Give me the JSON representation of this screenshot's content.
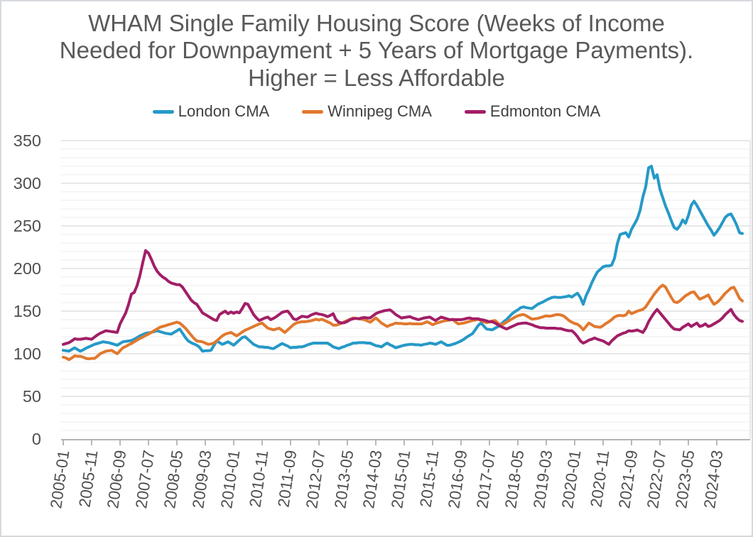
{
  "chart_data": {
    "type": "line",
    "title": "WHAM Single Family Housing Score (Weeks of Income Needed for Downpayment + 5 Years of Mortgage Payments). Higher = Less Affordable",
    "x_unit": "month",
    "x_start": "2005-01",
    "x_end": "2024-12",
    "x_tick_labels": [
      "2005-01",
      "2005-11",
      "2006-09",
      "2007-07",
      "2008-05",
      "2009-03",
      "2010-01",
      "2010-11",
      "2011-09",
      "2012-07",
      "2013-05",
      "2014-03",
      "2015-01",
      "2015-11",
      "2016-09",
      "2017-07",
      "2018-05",
      "2019-03",
      "2020-01",
      "2020-11",
      "2021-09",
      "2022-07",
      "2023-05",
      "2024-03"
    ],
    "x_tick_step_months": 10,
    "y_ticks": [
      0,
      50,
      100,
      150,
      200,
      250,
      300,
      350
    ],
    "ylim": [
      0,
      350
    ],
    "grid": {
      "horizontal_only": true,
      "minor_step": 10,
      "major_step": 50
    },
    "legend_position": "top-center",
    "colors": {
      "title_text": "#58595b",
      "axis_text": "#4f4f4f",
      "legend_text": "#414141",
      "grid_minor": "#ededed",
      "grid_major": "#d9d9d9",
      "axis_line": "#9b9b9b"
    },
    "series": [
      {
        "name": "London CMA",
        "color": "#2699c8",
        "values": [
          104,
          103.5,
          103,
          105,
          107,
          105,
          103,
          104.5,
          106.5,
          108,
          109.5,
          111,
          112,
          113,
          114,
          113.5,
          113,
          112,
          111,
          110,
          112,
          114,
          114.5,
          115,
          115.5,
          117,
          119,
          121,
          122.5,
          124,
          124.5,
          125,
          126,
          127,
          126,
          125,
          124,
          123.5,
          123,
          125,
          127,
          129,
          124,
          119,
          115,
          113,
          111.5,
          110,
          107.5,
          103,
          103.5,
          103.5,
          104,
          109.5,
          115,
          113,
          111,
          112.5,
          114,
          112,
          110,
          113,
          116,
          119,
          120,
          117,
          114,
          111,
          109.5,
          108,
          108,
          107.5,
          107.5,
          106.5,
          106,
          108,
          110,
          112,
          110.5,
          109,
          107,
          107.5,
          107.5,
          108,
          108,
          109,
          110.5,
          111.5,
          112.5,
          112.5,
          112.5,
          112.5,
          112.5,
          112.5,
          110.5,
          108,
          107,
          106,
          107.5,
          108.5,
          110,
          111,
          112.5,
          112.5,
          113,
          113,
          113,
          112.5,
          112.5,
          111,
          109.5,
          109,
          108,
          110.5,
          112.5,
          110.5,
          109,
          107,
          108,
          109,
          110,
          110.5,
          111,
          111,
          110.5,
          110.5,
          110,
          111,
          111.5,
          112.5,
          112,
          111,
          112.5,
          114,
          112,
          110,
          110,
          111,
          112,
          113.5,
          115,
          117,
          119.5,
          121.5,
          123.5,
          128,
          133,
          136,
          132.5,
          129,
          128.5,
          128,
          130,
          132,
          134.5,
          137.5,
          140,
          143.5,
          147,
          149.5,
          151.5,
          154,
          155,
          154,
          153.5,
          153,
          155.5,
          158,
          159.5,
          161,
          163,
          164.5,
          166,
          166.5,
          166,
          166,
          166.5,
          167,
          168,
          166.5,
          169,
          171,
          166,
          158,
          168,
          175,
          183,
          190,
          196,
          199,
          202,
          203,
          203,
          204,
          212,
          229,
          240,
          241,
          242,
          237,
          246,
          252,
          258,
          268,
          284,
          296,
          318,
          320,
          306,
          310,
          293,
          283,
          273,
          265,
          256,
          248,
          246,
          250,
          257,
          253,
          262,
          274,
          279,
          274,
          268,
          262,
          256,
          250,
          245,
          239,
          243,
          248,
          254,
          260,
          263,
          264,
          258,
          251,
          242,
          241
        ]
      },
      {
        "name": "Winnipeg CMA",
        "color": "#e1792e",
        "values": [
          96,
          95,
          93,
          95,
          97.5,
          97,
          97,
          96,
          94.5,
          94,
          94.5,
          94.5,
          97,
          100,
          101.5,
          103,
          103.5,
          104,
          102,
          100,
          103.5,
          107,
          108.5,
          110.5,
          112,
          114,
          116,
          118,
          119.5,
          121.5,
          123,
          125,
          127,
          129,
          131,
          132,
          133,
          134,
          135,
          136,
          137,
          136,
          133,
          130,
          126,
          122,
          118,
          115,
          114.5,
          114,
          112.5,
          111,
          111.5,
          112.5,
          115,
          118,
          121,
          123,
          124,
          125,
          123,
          121,
          123,
          125.5,
          127.5,
          129,
          130.5,
          132,
          133.5,
          135,
          136,
          133,
          130,
          129,
          128,
          129,
          130,
          127.5,
          125,
          128,
          131,
          134,
          136,
          137,
          137.5,
          137.5,
          138,
          138.5,
          139.5,
          140.5,
          139.5,
          140.5,
          139,
          137.5,
          136,
          133.5,
          133.5,
          134.5,
          136,
          137.5,
          139,
          140.5,
          142,
          141.5,
          141,
          140.5,
          140,
          138.5,
          137,
          139.5,
          142,
          139,
          136,
          134,
          132,
          133.5,
          134.5,
          136,
          135.5,
          135.5,
          135,
          135,
          135.5,
          135,
          135,
          135,
          135,
          136,
          137.5,
          136,
          134,
          135.5,
          136.5,
          137.5,
          138.5,
          139,
          139.5,
          140.5,
          137.5,
          135,
          135.5,
          136,
          137,
          138,
          139,
          139.5,
          140.5,
          139,
          137.5,
          136.5,
          137.5,
          138.5,
          139,
          136,
          133.5,
          135,
          137,
          139,
          141,
          143,
          144.5,
          145.5,
          146,
          144.5,
          142.5,
          140.5,
          141,
          141.5,
          142.5,
          143.5,
          144.5,
          144,
          144.5,
          145.5,
          146,
          145.5,
          144.5,
          142,
          139,
          137,
          135.5,
          134.5,
          132,
          128,
          132,
          136,
          134,
          132,
          131.5,
          131,
          133,
          135.5,
          137.5,
          140,
          143,
          144.5,
          145,
          144.5,
          145.5,
          150,
          147,
          148.5,
          150,
          151,
          152,
          155,
          160,
          165,
          170,
          174,
          178,
          180.5,
          178,
          172,
          166,
          161,
          160,
          162,
          165,
          168,
          170,
          172,
          172.5,
          168,
          164,
          165.5,
          167,
          169,
          163,
          158,
          160,
          163,
          167,
          171,
          174,
          177,
          178,
          172,
          165,
          162
        ]
      },
      {
        "name": "Edmonton CMA",
        "color": "#a21e67",
        "values": [
          111,
          112,
          113,
          115,
          117.5,
          117,
          117,
          117.5,
          118,
          117.5,
          117,
          119.5,
          122,
          124,
          125.5,
          127,
          126.5,
          126,
          125.5,
          125,
          135,
          141.5,
          148,
          158,
          170,
          172,
          180,
          192,
          207,
          221,
          218,
          211,
          203,
          197,
          193,
          190,
          188,
          185,
          183,
          182,
          181,
          181,
          178,
          173,
          168,
          163,
          160,
          158,
          153,
          148,
          146,
          144,
          142,
          140,
          139,
          146,
          148,
          150,
          147,
          149,
          147.5,
          149,
          148,
          153,
          159,
          158,
          152,
          146,
          142,
          139,
          140.5,
          142,
          143,
          140,
          141.5,
          143.5,
          146,
          148.5,
          149.5,
          150,
          146,
          141,
          140,
          142,
          144,
          143.5,
          143,
          145,
          146.5,
          147.5,
          146.5,
          146,
          145,
          143.5,
          145,
          147,
          140,
          137,
          136,
          136.5,
          138,
          140,
          141,
          141.5,
          141,
          142,
          142.5,
          142,
          142,
          144.5,
          147,
          148.5,
          149.5,
          150.5,
          151,
          151.5,
          149,
          146,
          144,
          142,
          142.5,
          143,
          143.5,
          142,
          141,
          140,
          141,
          142,
          142.5,
          143,
          141,
          139,
          141,
          143,
          142,
          141,
          140,
          140,
          140,
          140,
          140,
          140.5,
          141.5,
          142,
          141,
          141,
          141,
          140,
          139.5,
          138.5,
          137.5,
          137.5,
          136,
          134,
          132,
          130.5,
          129,
          130.5,
          132,
          133.5,
          135,
          135.5,
          136,
          136,
          135,
          134,
          132.5,
          131.5,
          130.5,
          130.5,
          130,
          130,
          130,
          130,
          129.5,
          129.5,
          128.5,
          127.5,
          127,
          127,
          124,
          120,
          115,
          112.5,
          114,
          116,
          117,
          118.5,
          117,
          116,
          115,
          113,
          111,
          115,
          118,
          121,
          122.5,
          124,
          125,
          127,
          126.5,
          127,
          127.8,
          126.5,
          125,
          130,
          137.5,
          143,
          148,
          152,
          148,
          144,
          140,
          136,
          132,
          129,
          128.5,
          128,
          131,
          133,
          135,
          132,
          134,
          136,
          132,
          133,
          135,
          132,
          133,
          135,
          137,
          139,
          142,
          146,
          149,
          152,
          146,
          142,
          139,
          138
        ]
      }
    ]
  }
}
